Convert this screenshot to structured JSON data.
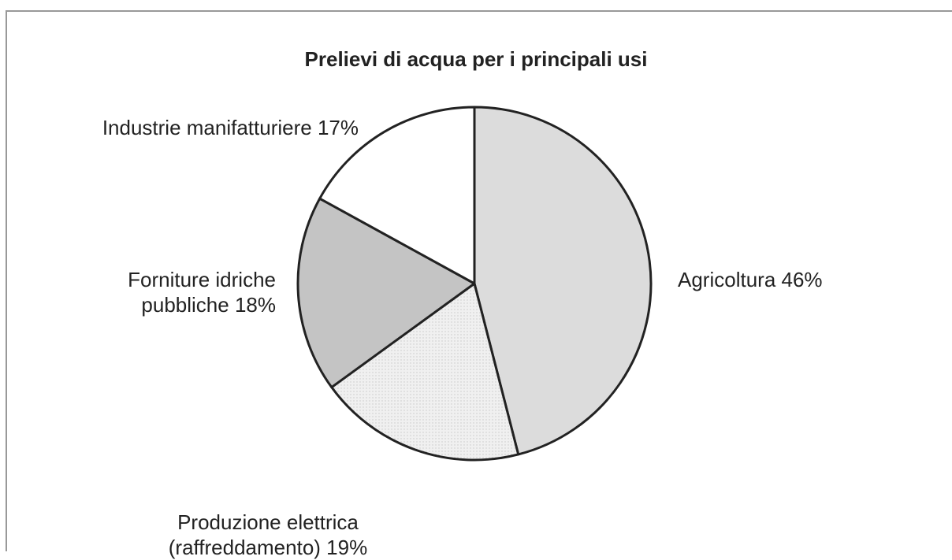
{
  "chart_data": {
    "type": "pie",
    "title": "Prelievi di acqua per i principali usi",
    "categories": [
      "Agricoltura",
      "Produzione elettrica (raffreddamento)",
      "Forniture idriche pubbliche",
      "Industrie manifatturiere"
    ],
    "values": [
      46,
      19,
      18,
      17
    ],
    "value_labels": [
      "46%",
      "19%",
      "18%",
      "17%"
    ],
    "colors": [
      "#dcdcdc",
      "#efefef",
      "#c4c4c4",
      "#ffffff"
    ]
  }
}
